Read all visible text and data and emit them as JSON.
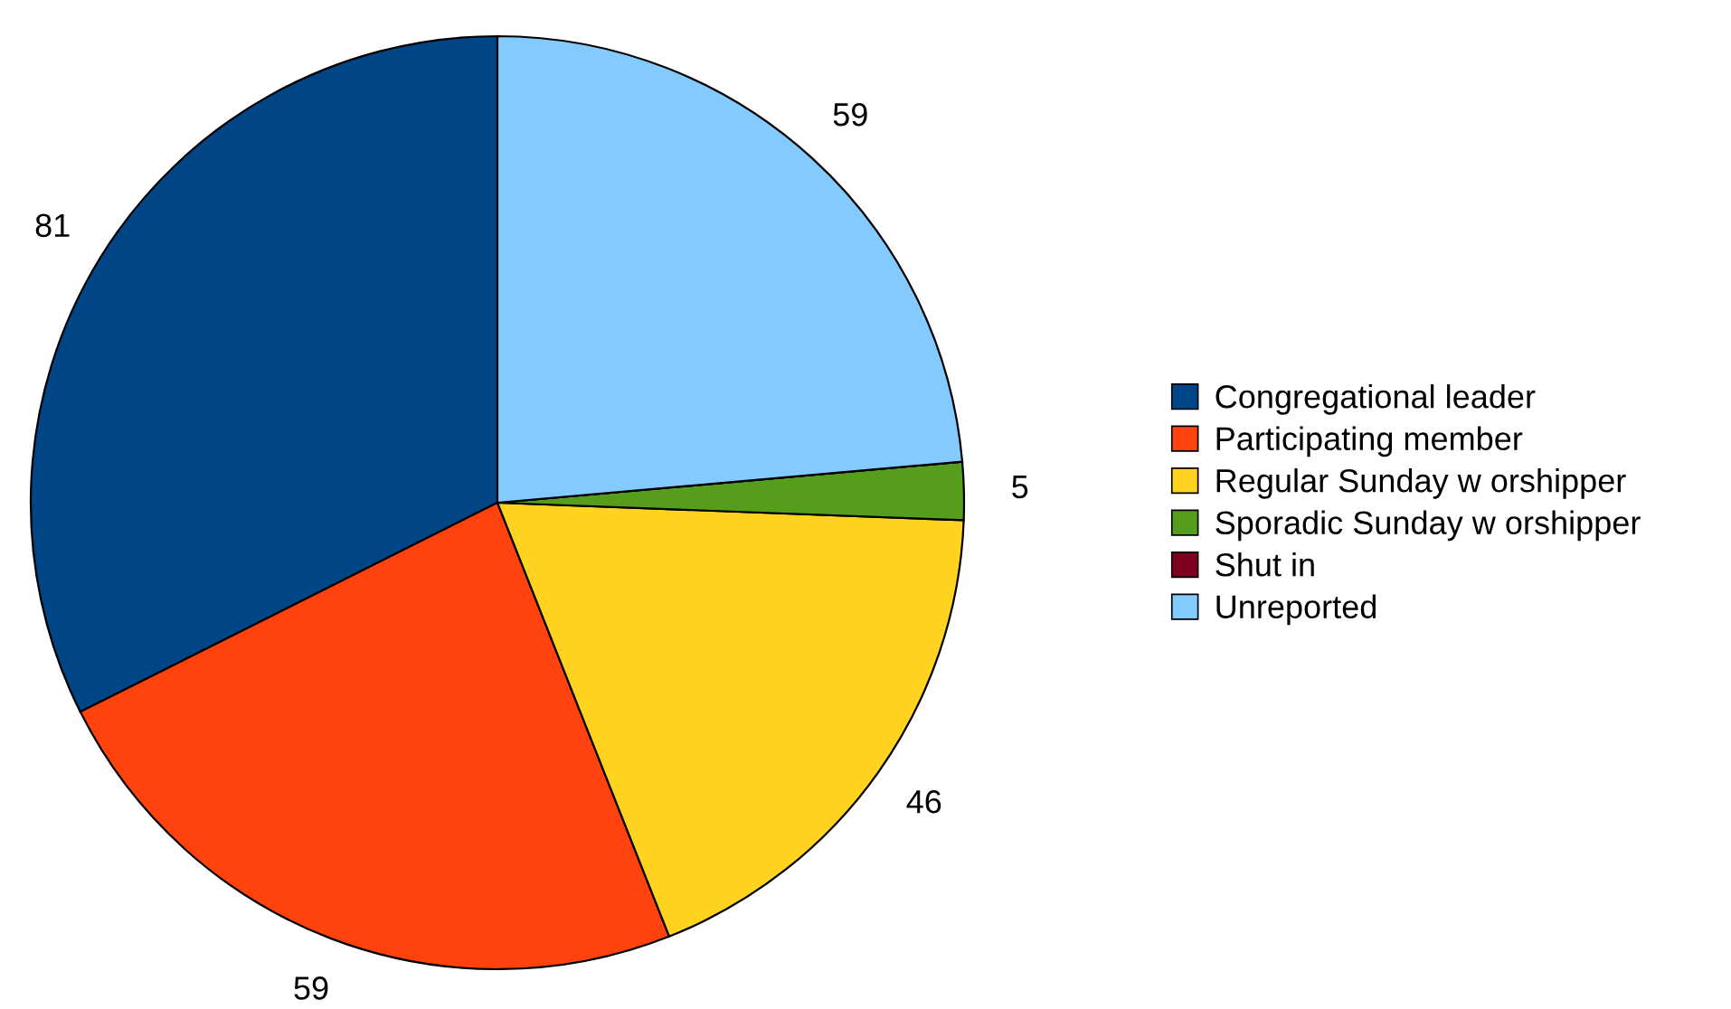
{
  "chart_data": {
    "type": "pie",
    "categories": [
      "Congregational leader",
      "Participating member",
      "Regular Sunday w orshipper",
      "Sporadic Sunday w orshipper",
      "Shut in",
      "Unreported"
    ],
    "values": [
      81,
      59,
      46,
      5,
      0,
      59
    ],
    "colors": [
      "#004586",
      "#ff420e",
      "#ffd320",
      "#579d1c",
      "#7e0021",
      "#83caff"
    ],
    "value_labels": [
      "81",
      "59",
      "46",
      "5",
      null,
      "59"
    ],
    "legend": "right"
  }
}
